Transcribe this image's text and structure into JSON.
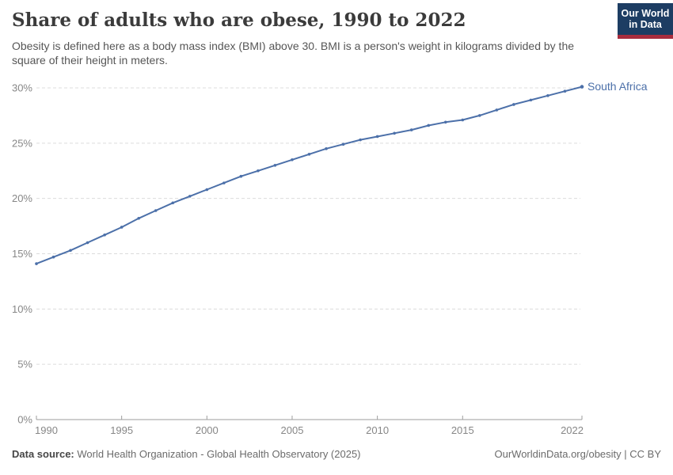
{
  "header": {
    "title": "Share of adults who are obese, 1990 to 2022",
    "subtitle": "Obesity is defined here as a body mass index (BMI) above 30. BMI is a person's weight in kilograms divided by the square of their height in meters.",
    "logo": {
      "line1": "Our World",
      "line2": "in Data"
    }
  },
  "colors": {
    "series_blue": "#4c70a9",
    "logo_navy": "#1d3d63",
    "logo_red": "#a82d3e",
    "grid": "#dcdcdc",
    "axis": "#9e9e9e",
    "tick_label": "#878787",
    "title_text": "#3b3b3b",
    "subtitle_text": "#565656"
  },
  "chart_data": {
    "type": "line",
    "title": "Share of adults who are obese, 1990 to 2022",
    "xlabel": "",
    "ylabel": "",
    "x": [
      1990,
      1991,
      1992,
      1993,
      1994,
      1995,
      1996,
      1997,
      1998,
      1999,
      2000,
      2001,
      2002,
      2003,
      2004,
      2005,
      2006,
      2007,
      2008,
      2009,
      2010,
      2011,
      2012,
      2013,
      2014,
      2015,
      2016,
      2017,
      2018,
      2019,
      2020,
      2021,
      2022
    ],
    "series": [
      {
        "name": "South Africa",
        "values": [
          14.1,
          14.7,
          15.3,
          16.0,
          16.7,
          17.4,
          18.2,
          18.9,
          19.6,
          20.2,
          20.8,
          21.4,
          22.0,
          22.5,
          23.0,
          23.5,
          24.0,
          24.5,
          24.9,
          25.3,
          25.6,
          25.9,
          26.2,
          26.6,
          26.9,
          27.1,
          27.5,
          28.0,
          28.5,
          28.9,
          29.3,
          29.7,
          30.1
        ]
      }
    ],
    "x_ticks": [
      "1990",
      "1995",
      "2000",
      "2005",
      "2010",
      "2015",
      "2022"
    ],
    "x_tick_years": [
      1990,
      1995,
      2000,
      2005,
      2010,
      2015,
      2022
    ],
    "y_ticks": [
      0,
      5,
      10,
      15,
      20,
      25,
      30
    ],
    "y_tick_suffix": "%",
    "xlim": [
      1990,
      2022
    ],
    "ylim": [
      0,
      30
    ],
    "grid": "horizontal-dashed",
    "legend": "line-end-label"
  },
  "footer": {
    "source_label": "Data source:",
    "source_text": " World Health Organization - Global Health Observatory (2025)",
    "right_text": "OurWorldinData.org/obesity | CC BY"
  }
}
